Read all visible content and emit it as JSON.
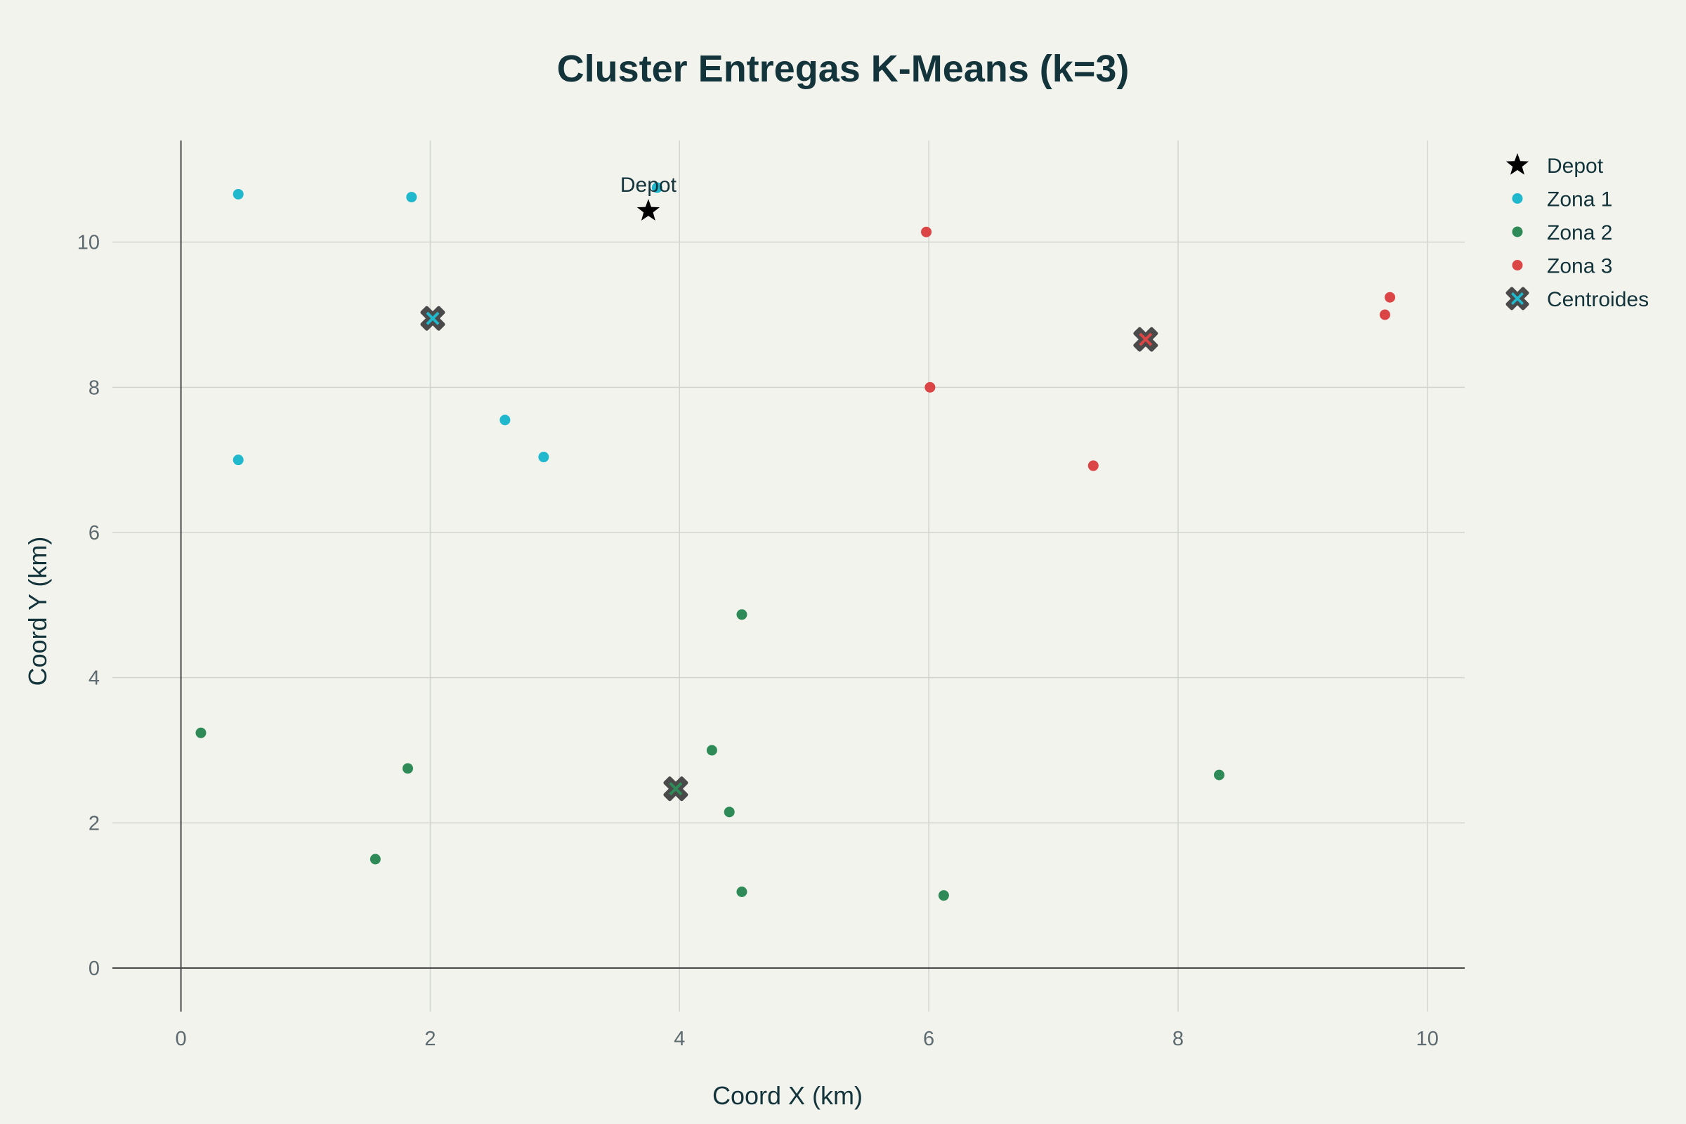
{
  "chart_data": {
    "type": "scatter",
    "title": "Cluster Entregas K-Means (k=3)",
    "xlabel": "Coord X (km)",
    "ylabel": "Coord Y (km)",
    "xlim": [
      -0.55,
      10.3
    ],
    "ylim": [
      -0.6,
      11.4
    ],
    "xticks": [
      0,
      2,
      4,
      6,
      8,
      10
    ],
    "yticks": [
      0,
      2,
      4,
      6,
      8,
      10
    ],
    "grid": true,
    "legend_position": "top-right",
    "depot": {
      "name": "Depot",
      "label": "Depot",
      "x": 3.75,
      "y": 10.43,
      "color": "#000000"
    },
    "series": [
      {
        "name": "Zona 1",
        "color": "#1fb8cd",
        "points": [
          [
            0.46,
            10.66
          ],
          [
            1.85,
            10.62
          ],
          [
            3.82,
            10.75
          ],
          [
            0.46,
            7.0
          ],
          [
            2.6,
            7.55
          ],
          [
            2.91,
            7.04
          ]
        ]
      },
      {
        "name": "Zona 2",
        "color": "#2e8b57",
        "points": [
          [
            4.5,
            4.87
          ],
          [
            0.16,
            3.24
          ],
          [
            1.82,
            2.75
          ],
          [
            4.26,
            3.0
          ],
          [
            4.4,
            2.15
          ],
          [
            1.56,
            1.5
          ],
          [
            4.5,
            1.05
          ],
          [
            6.12,
            1.0
          ],
          [
            8.33,
            2.66
          ]
        ]
      },
      {
        "name": "Zona 3",
        "color": "#db4545",
        "points": [
          [
            5.98,
            10.14
          ],
          [
            6.01,
            8.0
          ],
          [
            7.32,
            6.92
          ],
          [
            9.66,
            9.0
          ],
          [
            9.7,
            9.24
          ]
        ]
      }
    ],
    "centroids": {
      "name": "Centroides",
      "points": [
        {
          "x": 2.02,
          "y": 8.95,
          "color": "#1fb8cd"
        },
        {
          "x": 3.97,
          "y": 2.47,
          "color": "#2e8b57"
        },
        {
          "x": 7.74,
          "y": 8.66,
          "color": "#db4545"
        }
      ]
    },
    "legend": [
      "Depot",
      "Zona 1",
      "Zona 2",
      "Zona 3",
      "Centroides"
    ]
  },
  "colors": {
    "background": "#f3f3ee",
    "text": "#13343b",
    "grid": "#d2d4cf",
    "zeroline": "#4a4a4a",
    "centroid_fill": "#4a4a4a"
  }
}
